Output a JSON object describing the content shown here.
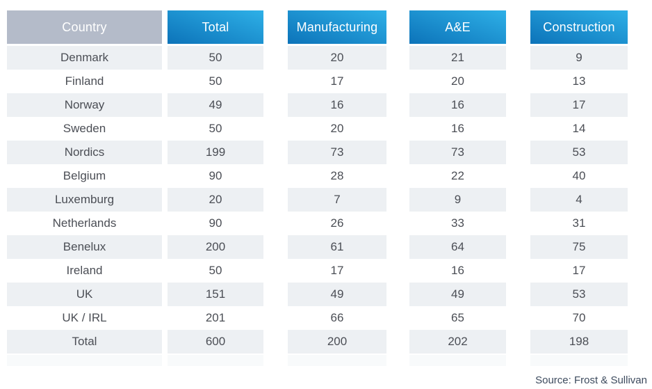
{
  "table": {
    "columns": [
      {
        "key": "country",
        "label": "Country"
      },
      {
        "key": "total",
        "label": "Total"
      },
      {
        "key": "manufacturing",
        "label": "Manufacturing"
      },
      {
        "key": "ae",
        "label": "A&E"
      },
      {
        "key": "construction",
        "label": "Construction"
      }
    ],
    "rows": [
      {
        "country": "Denmark",
        "total": "50",
        "manufacturing": "20",
        "ae": "21",
        "construction": "9"
      },
      {
        "country": "Finland",
        "total": "50",
        "manufacturing": "17",
        "ae": "20",
        "construction": "13"
      },
      {
        "country": "Norway",
        "total": "49",
        "manufacturing": "16",
        "ae": "16",
        "construction": "17"
      },
      {
        "country": "Sweden",
        "total": "50",
        "manufacturing": "20",
        "ae": "16",
        "construction": "14"
      },
      {
        "country": "Nordics",
        "total": "199",
        "manufacturing": "73",
        "ae": "73",
        "construction": "53"
      },
      {
        "country": "Belgium",
        "total": "90",
        "manufacturing": "28",
        "ae": "22",
        "construction": "40"
      },
      {
        "country": "Luxemburg",
        "total": "20",
        "manufacturing": "7",
        "ae": "9",
        "construction": "4"
      },
      {
        "country": "Netherlands",
        "total": "90",
        "manufacturing": "26",
        "ae": "33",
        "construction": "31"
      },
      {
        "country": "Benelux",
        "total": "200",
        "manufacturing": "61",
        "ae": "64",
        "construction": "75"
      },
      {
        "country": "Ireland",
        "total": "50",
        "manufacturing": "17",
        "ae": "16",
        "construction": "17"
      },
      {
        "country": "UK",
        "total": "151",
        "manufacturing": "49",
        "ae": "49",
        "construction": "53"
      },
      {
        "country": "UK / IRL",
        "total": "201",
        "manufacturing": "66",
        "ae": "65",
        "construction": "70"
      },
      {
        "country": "Total",
        "total": "600",
        "manufacturing": "200",
        "ae": "202",
        "construction": "198"
      }
    ]
  },
  "source": {
    "label": "Source: Frost & Sullivan"
  },
  "colors": {
    "header_blue_light": "#2eb0e7",
    "header_blue_dark": "#0c73b9",
    "header_gray": "#b4bbc9",
    "stripe_gray": "#edf0f3",
    "cell_text": "#4b4e55",
    "source_text": "#3d4b5e"
  },
  "chart_data": {
    "type": "table",
    "columns": [
      "Country",
      "Total",
      "Manufacturing",
      "A&E",
      "Construction"
    ],
    "rows": [
      [
        "Denmark",
        50,
        20,
        21,
        9
      ],
      [
        "Finland",
        50,
        17,
        20,
        13
      ],
      [
        "Norway",
        49,
        16,
        16,
        17
      ],
      [
        "Sweden",
        50,
        20,
        16,
        14
      ],
      [
        "Nordics",
        199,
        73,
        73,
        53
      ],
      [
        "Belgium",
        90,
        28,
        22,
        40
      ],
      [
        "Luxemburg",
        20,
        7,
        9,
        4
      ],
      [
        "Netherlands",
        90,
        26,
        33,
        31
      ],
      [
        "Benelux",
        200,
        61,
        64,
        75
      ],
      [
        "Ireland",
        50,
        17,
        16,
        17
      ],
      [
        "UK",
        151,
        49,
        49,
        53
      ],
      [
        "UK / IRL",
        201,
        66,
        65,
        70
      ],
      [
        "Total",
        600,
        200,
        202,
        198
      ]
    ],
    "title": "",
    "source": "Source: Frost & Sullivan",
    "legend_position": "none",
    "notes": "Striped data table; blue gradient column headers, gray Country header"
  }
}
